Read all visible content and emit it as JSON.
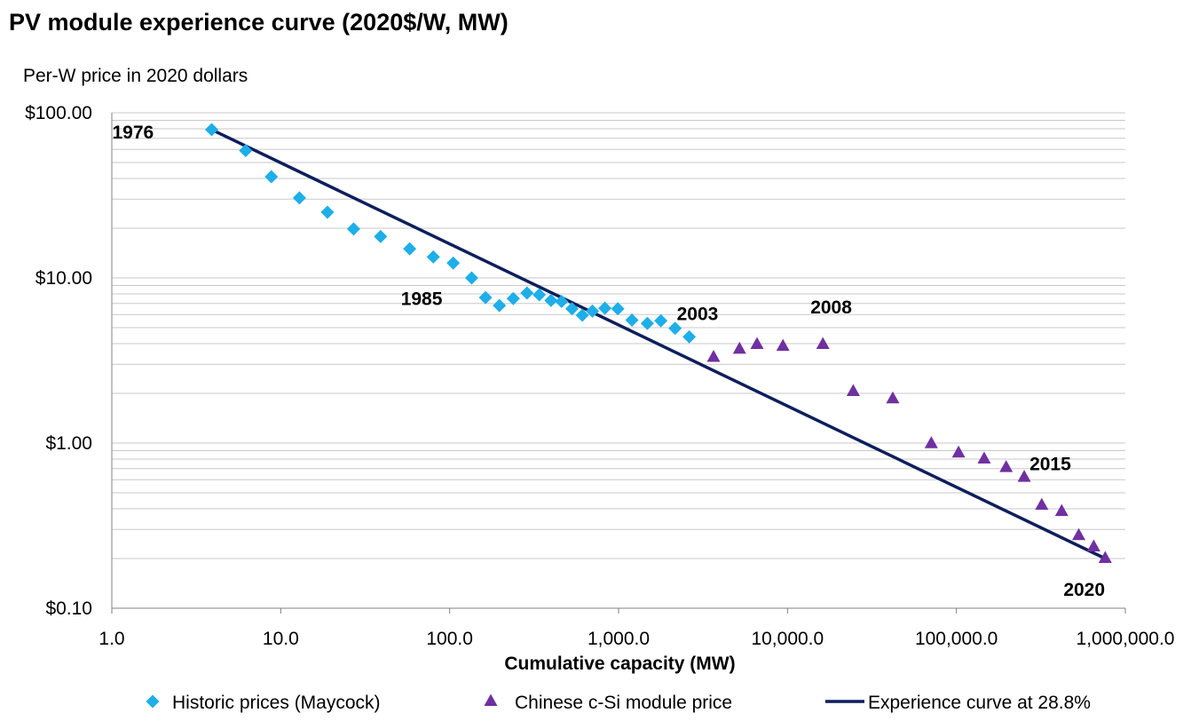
{
  "chart_data": {
    "type": "scatter",
    "title": "PV module experience curve (2020$/W, MW)",
    "ylabel": "Per-W price in 2020 dollars",
    "xlabel": "Cumulative capacity (MW)",
    "x_scale": "log",
    "y_scale": "log",
    "xlim": [
      1,
      1000000
    ],
    "ylim": [
      0.1,
      100
    ],
    "x_tick_values": [
      1,
      10,
      100,
      1000,
      10000,
      100000,
      1000000
    ],
    "x_tick_labels": [
      "1.0",
      "10.0",
      "100.0",
      "1,000.0",
      "10,000.0",
      "100,000.0",
      "1,000,000.0"
    ],
    "y_tick_values": [
      100,
      10,
      1,
      0.1
    ],
    "y_tick_labels": [
      "$100.00",
      "$10.00",
      "$1.00",
      "$0.10"
    ],
    "grid": "horizontal minor gridlines",
    "legend_position": "bottom",
    "series": [
      {
        "name": "Historic prices (Maycock)",
        "marker": "diamond",
        "color": "#1eaee8",
        "points": [
          [
            3.9,
            79
          ],
          [
            6.2,
            59
          ],
          [
            8.8,
            41
          ],
          [
            12.9,
            30.5
          ],
          [
            18.9,
            25
          ],
          [
            27.0,
            19.8
          ],
          [
            39.0,
            17.8
          ],
          [
            58.0,
            15
          ],
          [
            80.0,
            13.4
          ],
          [
            105.0,
            12.3
          ],
          [
            135.0,
            10.0
          ],
          [
            163.0,
            7.6
          ],
          [
            197.0,
            6.8
          ],
          [
            238.0,
            7.5
          ],
          [
            287.0,
            8.1
          ],
          [
            339.0,
            7.9
          ],
          [
            398.0,
            7.3
          ],
          [
            460.0,
            7.2
          ],
          [
            530.0,
            6.5
          ],
          [
            610.0,
            5.95
          ],
          [
            700.0,
            6.3
          ],
          [
            830.0,
            6.55
          ],
          [
            990.0,
            6.5
          ],
          [
            1200.0,
            5.55
          ],
          [
            1480.0,
            5.3
          ],
          [
            1780.0,
            5.5
          ],
          [
            2160.0,
            4.95
          ],
          [
            2620.0,
            4.4
          ]
        ]
      },
      {
        "name": "Chinese c-Si module price",
        "marker": "triangle",
        "color": "#7030a0",
        "points": [
          [
            3650,
            3.3
          ],
          [
            5200,
            3.7
          ],
          [
            6600,
            3.95
          ],
          [
            9400,
            3.85
          ],
          [
            16200,
            3.95
          ],
          [
            24500,
            2.05
          ],
          [
            42000,
            1.85
          ],
          [
            71000,
            0.99
          ],
          [
            103000,
            0.87
          ],
          [
            146000,
            0.8
          ],
          [
            197000,
            0.71
          ],
          [
            252000,
            0.62
          ],
          [
            320000,
            0.42
          ],
          [
            420000,
            0.385
          ],
          [
            530000,
            0.275
          ],
          [
            650000,
            0.235
          ],
          [
            760000,
            0.2
          ]
        ]
      },
      {
        "name": "Experience curve at 28.8%",
        "type": "line",
        "color": "#0d1f5c",
        "points": [
          [
            3.9,
            79
          ],
          [
            760000,
            0.2
          ]
        ]
      }
    ],
    "annotations": [
      {
        "text": "1976",
        "x": 3.9,
        "y": 79
      },
      {
        "text": "1985",
        "x": 105,
        "y": 12.3
      },
      {
        "text": "2003",
        "x": 2620,
        "y": 4.4
      },
      {
        "text": "2008",
        "x": 16200,
        "y": 3.95
      },
      {
        "text": "2015",
        "x": 252000,
        "y": 0.62
      },
      {
        "text": "2020",
        "x": 760000,
        "y": 0.2
      }
    ]
  }
}
